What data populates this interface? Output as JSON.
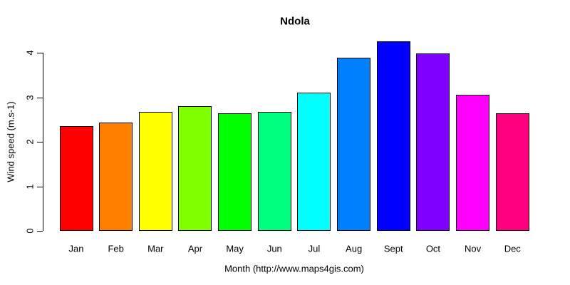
{
  "chart_data": {
    "type": "bar",
    "title": "Ndola",
    "xlabel": "Month (http://www.maps4gis.com)",
    "ylabel": "Wind speed (m.s-1)",
    "categories": [
      "Jan",
      "Feb",
      "Mar",
      "Apr",
      "May",
      "Jun",
      "Jul",
      "Aug",
      "Sept",
      "Oct",
      "Nov",
      "Dec"
    ],
    "values": [
      2.35,
      2.43,
      2.67,
      2.8,
      2.64,
      2.68,
      3.11,
      3.89,
      4.25,
      3.98,
      3.05,
      2.64
    ],
    "bar_colors": [
      "#FF0000",
      "#FF8000",
      "#FFFF00",
      "#80FF00",
      "#00FF00",
      "#00FF80",
      "#00FFFF",
      "#0080FF",
      "#0000FF",
      "#8000FF",
      "#FF00FF",
      "#FF0080"
    ],
    "bar_border_color": "#000000",
    "axis_color": "#000000",
    "text_color": "#000000",
    "background_color": "#FFFFFF",
    "yticks": [
      0,
      1,
      2,
      3,
      4
    ],
    "ylim": [
      0,
      4.3
    ],
    "grid": false,
    "legend": null
  }
}
